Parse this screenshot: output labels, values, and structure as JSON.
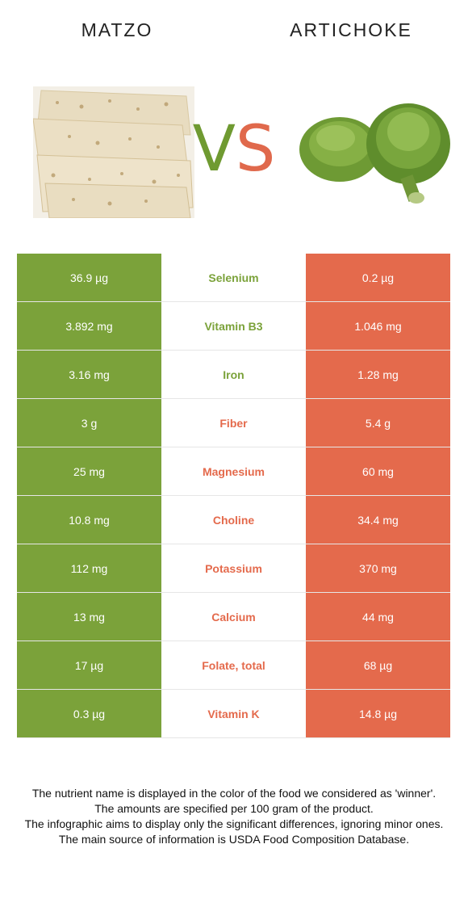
{
  "header": {
    "left_food": "MATZO",
    "right_food": "ARTICHOKE",
    "vs_v": "V",
    "vs_s": "S"
  },
  "colors": {
    "winner_left": "#7ba23a",
    "winner_right": "#e46a4c"
  },
  "rows": [
    {
      "left": "36.9 µg",
      "nutrient": "Selenium",
      "right": "0.2 µg",
      "winner": "left"
    },
    {
      "left": "3.892 mg",
      "nutrient": "Vitamin B3",
      "right": "1.046 mg",
      "winner": "left"
    },
    {
      "left": "3.16 mg",
      "nutrient": "Iron",
      "right": "1.28 mg",
      "winner": "left"
    },
    {
      "left": "3 g",
      "nutrient": "Fiber",
      "right": "5.4 g",
      "winner": "right"
    },
    {
      "left": "25 mg",
      "nutrient": "Magnesium",
      "right": "60 mg",
      "winner": "right"
    },
    {
      "left": "10.8 mg",
      "nutrient": "Choline",
      "right": "34.4 mg",
      "winner": "right"
    },
    {
      "left": "112 mg",
      "nutrient": "Potassium",
      "right": "370 mg",
      "winner": "right"
    },
    {
      "left": "13 mg",
      "nutrient": "Calcium",
      "right": "44 mg",
      "winner": "right"
    },
    {
      "left": "17 µg",
      "nutrient": "Folate, total",
      "right": "68 µg",
      "winner": "right"
    },
    {
      "left": "0.3 µg",
      "nutrient": "Vitamin K",
      "right": "14.8 µg",
      "winner": "right"
    }
  ],
  "footer": {
    "line1": "The nutrient name is displayed in the color of the food we considered as 'winner'.",
    "line2": "The amounts are specified per 100 gram of the product.",
    "line3": "The infographic aims to display only the significant differences, ignoring minor ones.",
    "line4": "The main source of information is USDA Food Composition Database."
  }
}
